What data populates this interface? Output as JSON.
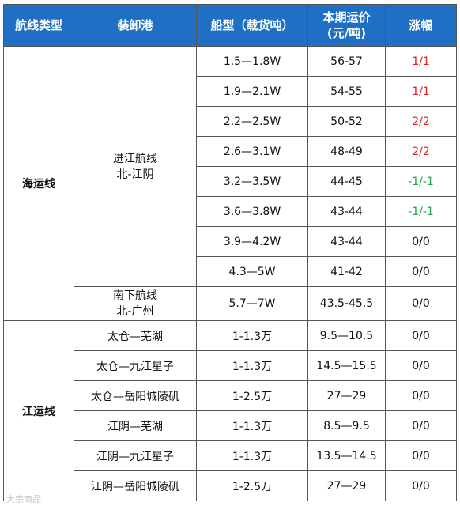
{
  "header": {
    "route_type": "航线类型",
    "port": "装卸港",
    "ship_type": "船型（载货吨）",
    "rate_line1": "本期运价",
    "rate_line2": "(元/吨)",
    "change": "涨幅"
  },
  "sea": {
    "type": "海运线",
    "port_a_line1": "进江航线",
    "port_a_line2": "北-江阴",
    "port_b_line1": "南下航线",
    "port_b_line2": "北-广州",
    "rows": [
      {
        "ship": "1.5—1.8W",
        "rate": "56-57",
        "change": "1/1",
        "dir": "up"
      },
      {
        "ship": "1.9—2.1W",
        "rate": "54-55",
        "change": "1/1",
        "dir": "up"
      },
      {
        "ship": "2.2—2.5W",
        "rate": "50-52",
        "change": "2/2",
        "dir": "up"
      },
      {
        "ship": "2.6—3.1W",
        "rate": "48-49",
        "change": "2/2",
        "dir": "up"
      },
      {
        "ship": "3.2—3.5W",
        "rate": "44-45",
        "change": "-1/-1",
        "dir": "down"
      },
      {
        "ship": "3.6—3.8W",
        "rate": "43-44",
        "change": "-1/-1",
        "dir": "down"
      },
      {
        "ship": "3.9—4.2W",
        "rate": "43-44",
        "change": "0/0",
        "dir": "flat"
      },
      {
        "ship": "4.3—5W",
        "rate": "41-42",
        "change": "0/0",
        "dir": "flat"
      },
      {
        "ship": "5.7—7W",
        "rate": "43.5-45.5",
        "change": "0/0",
        "dir": "flat"
      }
    ]
  },
  "river": {
    "type": "江运线",
    "rows": [
      {
        "port": "太仓—芜湖",
        "ship": "1-1.3万",
        "rate": "9.5—10.5",
        "change": "0/0"
      },
      {
        "port": "太仓—九江星子",
        "ship": "1-1.3万",
        "rate": "14.5—15.5",
        "change": "0/0"
      },
      {
        "port": "太仓—岳阳城陵矶",
        "ship": "1-2.5万",
        "rate": "27—29",
        "change": "0/0"
      },
      {
        "port": "江阴—芜湖",
        "ship": "1-1.3万",
        "rate": "8.5—9.5",
        "change": "0/0"
      },
      {
        "port": "江阴—九江星子",
        "ship": "1-1.3万",
        "rate": "13.5—14.5",
        "change": "0/0"
      },
      {
        "port": "江阴—岳阳城陵矶",
        "ship": "1-2.5万",
        "rate": "27—29",
        "change": "0/0"
      }
    ]
  },
  "colors": {
    "header_bg": "#1f6fc4",
    "up": "#e02020",
    "down": "#1aa848"
  },
  "watermark": "大宗商品"
}
